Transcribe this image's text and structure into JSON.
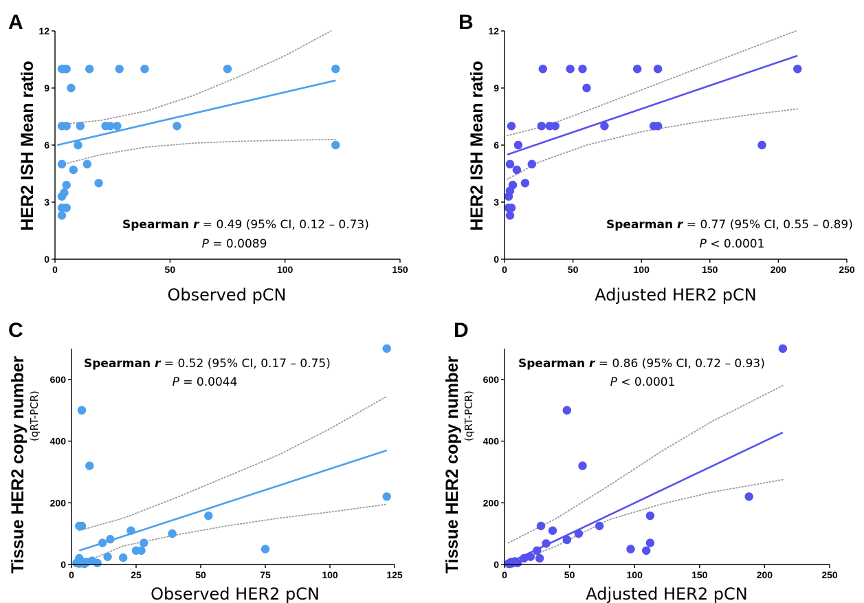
{
  "chart_data": [
    {
      "panel": "A",
      "type": "scatter",
      "xlabel": "Observed pCN",
      "ylabel": "HER2 ISH Mean ratio",
      "ylabel_sub": "",
      "xlim": [
        0,
        150
      ],
      "ylim": [
        0,
        12
      ],
      "xticks": [
        0,
        50,
        100,
        150
      ],
      "yticks": [
        0,
        3,
        6,
        9,
        12
      ],
      "color": "#4ea0ec",
      "annotation": {
        "prefix": "Spearman ",
        "r_symbol": "r",
        "stat": " = 0.49 (95% CI, 0.12 – 0.73)",
        "p_symbol": "P",
        "p_value": " = 0.0089"
      },
      "fit": {
        "x": [
          1,
          122
        ],
        "y": [
          6.0,
          9.4
        ]
      },
      "ci_upper": [
        [
          4,
          7.1
        ],
        [
          20,
          7.3
        ],
        [
          40,
          7.8
        ],
        [
          60,
          8.6
        ],
        [
          80,
          9.6
        ],
        [
          100,
          10.7
        ],
        [
          120,
          12.0
        ]
      ],
      "ci_lower": [
        [
          4,
          5.0
        ],
        [
          20,
          5.5
        ],
        [
          40,
          5.9
        ],
        [
          60,
          6.1
        ],
        [
          80,
          6.2
        ],
        [
          100,
          6.25
        ],
        [
          122,
          6.3
        ]
      ],
      "points": [
        [
          3,
          10
        ],
        [
          4,
          10
        ],
        [
          5,
          10
        ],
        [
          15,
          10
        ],
        [
          28,
          10
        ],
        [
          39,
          10
        ],
        [
          75,
          10
        ],
        [
          122,
          10
        ],
        [
          7,
          9
        ],
        [
          3,
          7
        ],
        [
          5,
          7
        ],
        [
          11,
          7
        ],
        [
          22,
          7
        ],
        [
          24,
          7
        ],
        [
          27,
          7
        ],
        [
          53,
          7
        ],
        [
          10,
          6
        ],
        [
          122,
          6
        ],
        [
          3,
          5
        ],
        [
          14,
          5
        ],
        [
          8,
          4.7
        ],
        [
          19,
          4
        ],
        [
          5,
          3.9
        ],
        [
          4,
          3.5
        ],
        [
          3,
          3.3
        ],
        [
          3,
          2.7
        ],
        [
          5,
          2.7
        ],
        [
          3,
          2.3
        ]
      ]
    },
    {
      "panel": "B",
      "type": "scatter",
      "xlabel": "Adjusted HER2 pCN",
      "ylabel": "HER2 ISH Mean ratio",
      "ylabel_sub": "",
      "xlim": [
        0,
        250
      ],
      "ylim": [
        0,
        12
      ],
      "xticks": [
        0,
        50,
        100,
        150,
        200,
        250
      ],
      "yticks": [
        0,
        3,
        6,
        9,
        12
      ],
      "color": "#5552ee",
      "annotation": {
        "prefix": "Spearman ",
        "r_symbol": "r",
        "stat": " = 0.77 (95% CI, 0.55 – 0.89)",
        "p_symbol": "P",
        "p_value": " < 0.0001"
      },
      "fit": {
        "x": [
          2,
          214
        ],
        "y": [
          5.5,
          10.7
        ]
      },
      "ci_upper": [
        [
          2,
          6.5
        ],
        [
          30,
          7.0
        ],
        [
          60,
          7.8
        ],
        [
          100,
          8.9
        ],
        [
          140,
          10.0
        ],
        [
          180,
          11.1
        ],
        [
          213,
          12.0
        ]
      ],
      "ci_lower": [
        [
          2,
          4.2
        ],
        [
          25,
          5.1
        ],
        [
          60,
          6.0
        ],
        [
          100,
          6.7
        ],
        [
          140,
          7.2
        ],
        [
          180,
          7.6
        ],
        [
          214,
          7.9
        ]
      ],
      "points": [
        [
          28,
          10
        ],
        [
          48,
          10
        ],
        [
          57,
          10
        ],
        [
          97,
          10
        ],
        [
          112,
          10
        ],
        [
          214,
          10
        ],
        [
          60,
          9
        ],
        [
          5,
          7
        ],
        [
          27,
          7
        ],
        [
          33,
          7
        ],
        [
          37,
          7
        ],
        [
          73,
          7
        ],
        [
          109,
          7
        ],
        [
          112,
          7
        ],
        [
          10,
          6
        ],
        [
          188,
          6
        ],
        [
          4,
          5
        ],
        [
          20,
          5
        ],
        [
          9,
          4.7
        ],
        [
          15,
          4
        ],
        [
          6,
          3.9
        ],
        [
          4,
          3.6
        ],
        [
          3,
          3.3
        ],
        [
          3,
          2.7
        ],
        [
          5,
          2.7
        ],
        [
          4,
          2.3
        ]
      ]
    },
    {
      "panel": "C",
      "type": "scatter",
      "xlabel": "Observed HER2 pCN",
      "ylabel": "Tissue HER2 copy number",
      "ylabel_sub": "(qRT-PCR)",
      "xlim": [
        0,
        125
      ],
      "ylim": [
        0,
        700
      ],
      "xticks": [
        0,
        25,
        50,
        75,
        100,
        125
      ],
      "yticks": [
        0,
        200,
        400,
        600
      ],
      "color": "#4ea0ec",
      "annotation": {
        "prefix": "Spearman ",
        "r_symbol": "r",
        "stat": " = 0.52 (95% CI, 0.17 – 0.75)",
        "p_symbol": "P",
        "p_value": " = 0.0044"
      },
      "fit": {
        "x": [
          3,
          122
        ],
        "y": [
          45,
          370
        ]
      },
      "ci_upper": [
        [
          3,
          110
        ],
        [
          20,
          150
        ],
        [
          40,
          215
        ],
        [
          60,
          285
        ],
        [
          80,
          355
        ],
        [
          100,
          440
        ],
        [
          122,
          545
        ]
      ],
      "ci_lower": [
        [
          3,
          -10
        ],
        [
          20,
          60
        ],
        [
          40,
          95
        ],
        [
          60,
          125
        ],
        [
          80,
          150
        ],
        [
          100,
          170
        ],
        [
          122,
          195
        ]
      ],
      "points": [
        [
          122,
          700
        ],
        [
          4,
          500
        ],
        [
          7,
          320
        ],
        [
          3,
          125
        ],
        [
          4,
          125
        ],
        [
          122,
          220
        ],
        [
          53,
          158
        ],
        [
          23,
          110
        ],
        [
          39,
          100
        ],
        [
          15,
          82
        ],
        [
          12,
          70
        ],
        [
          28,
          70
        ],
        [
          75,
          50
        ],
        [
          25,
          45
        ],
        [
          27,
          45
        ],
        [
          14,
          25
        ],
        [
          20,
          22
        ],
        [
          3,
          20
        ],
        [
          4,
          10
        ],
        [
          6,
          8
        ],
        [
          8,
          12
        ],
        [
          10,
          5
        ],
        [
          2,
          5
        ],
        [
          3,
          3
        ],
        [
          5,
          2
        ]
      ]
    },
    {
      "panel": "D",
      "type": "scatter",
      "xlabel": "Adjusted HER2 pCN",
      "ylabel": "Tissue HER2 copy number",
      "ylabel_sub": "(qRT-PCR)",
      "xlim": [
        0,
        250
      ],
      "ylim": [
        0,
        700
      ],
      "xticks": [
        0,
        50,
        100,
        150,
        200,
        250
      ],
      "yticks": [
        0,
        200,
        400,
        600
      ],
      "color": "#5552ee",
      "annotation": {
        "prefix": "Spearman ",
        "r_symbol": "r",
        "stat": " = 0.86 (95% CI, 0.72 – 0.93)",
        "p_symbol": "P",
        "p_value": " < 0.0001"
      },
      "fit": {
        "x": [
          3,
          214
        ],
        "y": [
          5,
          428
        ]
      },
      "ci_upper": [
        [
          3,
          70
        ],
        [
          40,
          150
        ],
        [
          80,
          255
        ],
        [
          120,
          365
        ],
        [
          160,
          465
        ],
        [
          214,
          580
        ]
      ],
      "ci_lower": [
        [
          3,
          -50
        ],
        [
          40,
          60
        ],
        [
          80,
          145
        ],
        [
          120,
          195
        ],
        [
          160,
          235
        ],
        [
          214,
          275
        ]
      ],
      "points": [
        [
          214,
          700
        ],
        [
          48,
          500
        ],
        [
          60,
          320
        ],
        [
          188,
          220
        ],
        [
          112,
          158
        ],
        [
          28,
          125
        ],
        [
          73,
          125
        ],
        [
          37,
          110
        ],
        [
          57,
          100
        ],
        [
          48,
          80
        ],
        [
          112,
          70
        ],
        [
          32,
          68
        ],
        [
          97,
          50
        ],
        [
          109,
          45
        ],
        [
          25,
          45
        ],
        [
          20,
          25
        ],
        [
          27,
          20
        ],
        [
          15,
          20
        ],
        [
          5,
          8
        ],
        [
          8,
          10
        ],
        [
          10,
          5
        ],
        [
          3,
          3
        ],
        [
          4,
          2
        ],
        [
          6,
          4
        ]
      ]
    }
  ]
}
